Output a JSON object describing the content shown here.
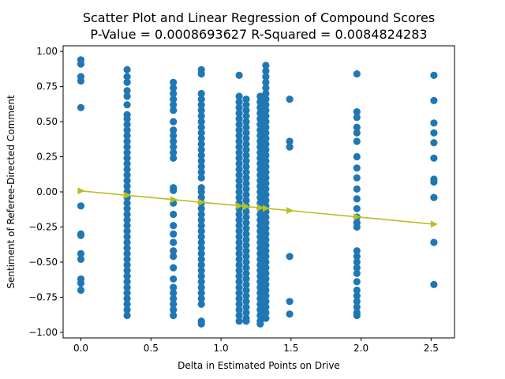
{
  "chart_data": {
    "type": "scatter",
    "title": "Scatter Plot and Linear Regression of Compound Scores",
    "subtitle": "P-Value = 0.0008693627 R-Squared = 0.0084824283",
    "xlabel": "Delta in Estimated Points on Drive",
    "ylabel": "Sentiment of Referee-Directed Comment",
    "xlim": [
      -0.127,
      2.667
    ],
    "ylim": [
      -1.04,
      1.04
    ],
    "xticks": [
      0.0,
      0.5,
      1.0,
      1.5,
      2.0,
      2.5
    ],
    "xtick_labels": [
      "0.0",
      "0.5",
      "1.0",
      "1.5",
      "2.0",
      "2.5"
    ],
    "yticks": [
      -1.0,
      -0.75,
      -0.5,
      -0.25,
      0.0,
      0.25,
      0.5,
      0.75,
      1.0
    ],
    "ytick_labels": [
      "−1.00",
      "−0.75",
      "−0.50",
      "−0.25",
      "0.00",
      "0.25",
      "0.50",
      "0.75",
      "1.00"
    ],
    "grid": false,
    "colors": {
      "points": "#1f77b4",
      "regression": "#bcbd22"
    },
    "series": [
      {
        "type": "scatter",
        "columns": [
          {
            "x": 0.0,
            "y": [
              0.94,
              0.91,
              0.82,
              0.79,
              0.6,
              -0.1,
              -0.3,
              -0.31,
              -0.44,
              -0.48,
              -0.62,
              -0.65,
              -0.7
            ]
          },
          {
            "x": 0.33,
            "y": [
              0.87,
              0.82,
              0.78,
              0.72,
              0.68,
              0.62,
              0.55,
              0.52,
              0.48,
              0.44,
              0.4,
              0.36,
              0.32,
              0.28,
              0.24,
              0.2,
              0.16,
              0.12,
              0.08,
              0.04,
              0.0,
              -0.04,
              -0.08,
              -0.12,
              -0.16,
              -0.2,
              -0.24,
              -0.28,
              -0.32,
              -0.36,
              -0.4,
              -0.44,
              -0.48,
              -0.52,
              -0.56,
              -0.6,
              -0.64,
              -0.68,
              -0.72,
              -0.76,
              -0.8,
              -0.84,
              -0.88
            ]
          },
          {
            "x": 0.66,
            "y": [
              0.78,
              0.74,
              0.7,
              0.66,
              0.62,
              0.58,
              0.5,
              0.44,
              0.4,
              0.36,
              0.32,
              0.28,
              0.24,
              0.03,
              0.01,
              -0.08,
              -0.16,
              -0.24,
              -0.3,
              -0.36,
              -0.42,
              -0.46,
              -0.54,
              -0.62,
              -0.68,
              -0.72,
              -0.76,
              -0.8,
              -0.84,
              -0.88
            ]
          },
          {
            "x": 0.86,
            "y": [
              0.87,
              0.84,
              0.7,
              0.66,
              0.62,
              0.58,
              0.54,
              0.5,
              0.46,
              0.42,
              0.38,
              0.34,
              0.3,
              0.26,
              0.22,
              0.18,
              0.14,
              0.1,
              0.03,
              0.0,
              -0.04,
              -0.08,
              -0.12,
              -0.16,
              -0.2,
              -0.24,
              -0.28,
              -0.32,
              -0.36,
              -0.4,
              -0.44,
              -0.48,
              -0.52,
              -0.56,
              -0.6,
              -0.64,
              -0.68,
              -0.72,
              -0.76,
              -0.8,
              -0.92,
              -0.94
            ]
          },
          {
            "x": 1.13,
            "y": [
              0.83,
              0.68,
              0.64,
              0.6,
              0.56,
              0.52,
              0.48,
              0.44,
              0.4,
              0.36,
              0.32,
              0.28,
              0.24,
              0.2,
              0.16,
              0.12,
              0.08,
              0.04,
              0.0,
              -0.04,
              -0.08,
              -0.12,
              -0.16,
              -0.2,
              -0.24,
              -0.28,
              -0.32,
              -0.36,
              -0.4,
              -0.44,
              -0.48,
              -0.52,
              -0.56,
              -0.6,
              -0.64,
              -0.68,
              -0.72,
              -0.76,
              -0.8,
              -0.84,
              -0.88,
              -0.92
            ]
          },
          {
            "x": 1.18,
            "y": [
              0.66,
              0.62,
              0.58,
              0.54,
              0.5,
              0.46,
              0.42,
              0.38,
              0.34,
              0.3,
              0.26,
              0.22,
              0.18,
              0.14,
              0.1,
              0.06,
              0.02,
              -0.02,
              -0.06,
              -0.1,
              -0.14,
              -0.18,
              -0.22,
              -0.26,
              -0.3,
              -0.34,
              -0.38,
              -0.42,
              -0.46,
              -0.5,
              -0.54,
              -0.58,
              -0.62,
              -0.66,
              -0.7,
              -0.74,
              -0.78,
              -0.82,
              -0.86,
              -0.9,
              -0.92
            ]
          },
          {
            "x": 1.28,
            "y": [
              0.68,
              0.64,
              0.6,
              0.56,
              0.52,
              0.48,
              0.44,
              0.4,
              0.36,
              0.32,
              0.28,
              0.24,
              0.2,
              0.16,
              0.12,
              0.08,
              0.04,
              0.0,
              -0.04,
              -0.08,
              -0.12,
              -0.16,
              -0.2,
              -0.24,
              -0.28,
              -0.32,
              -0.36,
              -0.4,
              -0.44,
              -0.48,
              -0.52,
              -0.56,
              -0.6,
              -0.64,
              -0.68,
              -0.72,
              -0.76,
              -0.8,
              -0.84,
              -0.88,
              -0.92,
              -0.94
            ]
          },
          {
            "x": 1.32,
            "y": [
              0.9,
              0.86,
              0.82,
              0.78,
              0.74,
              0.7,
              0.66,
              0.62,
              0.58,
              0.54,
              0.5,
              0.46,
              0.42,
              0.38,
              0.34,
              0.3,
              0.26,
              0.22,
              0.18,
              0.14,
              0.1,
              0.06,
              0.02,
              -0.02,
              -0.06,
              -0.1,
              -0.14,
              -0.18,
              -0.22,
              -0.26,
              -0.3,
              -0.34,
              -0.38,
              -0.42,
              -0.46,
              -0.5,
              -0.54,
              -0.58,
              -0.62,
              -0.66,
              -0.7,
              -0.74,
              -0.78,
              -0.82,
              -0.86,
              -0.9
            ]
          },
          {
            "x": 1.49,
            "y": [
              0.66,
              0.36,
              0.32,
              -0.46,
              -0.78,
              -0.87
            ]
          },
          {
            "x": 1.97,
            "y": [
              0.84,
              0.57,
              0.53,
              0.46,
              0.42,
              0.36,
              0.25,
              0.17,
              0.1,
              0.02,
              -0.05,
              -0.12,
              -0.18,
              -0.22,
              -0.25,
              -0.42,
              -0.46,
              -0.5,
              -0.54,
              -0.58,
              -0.64,
              -0.7,
              -0.74,
              -0.78,
              -0.82,
              -0.86,
              -0.88
            ]
          },
          {
            "x": 2.52,
            "y": [
              0.83,
              0.65,
              0.49,
              0.42,
              0.35,
              0.24,
              0.09,
              0.07,
              -0.04,
              -0.36,
              -0.66
            ]
          }
        ]
      },
      {
        "type": "line",
        "marker": "triangle-right",
        "x": [
          0.0,
          0.33,
          0.66,
          0.86,
          1.13,
          1.18,
          1.28,
          1.32,
          1.49,
          1.97,
          2.52
        ],
        "y": [
          0.007,
          -0.024,
          -0.055,
          -0.074,
          -0.099,
          -0.104,
          -0.113,
          -0.117,
          -0.133,
          -0.178,
          -0.23
        ]
      }
    ]
  }
}
